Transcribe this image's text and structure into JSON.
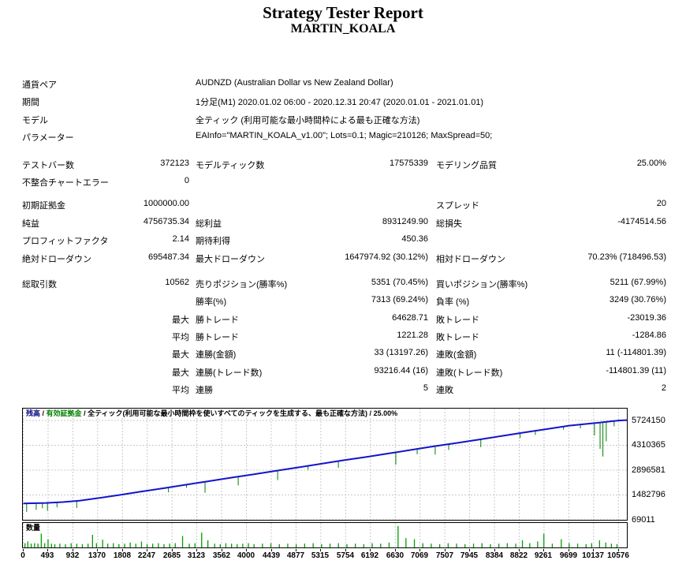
{
  "title": "Strategy Tester Report",
  "subtitle": "MARTIN_KOALA",
  "report": {
    "rows": [
      {
        "c1l": "通貨ペア",
        "wide": "AUDNZD (Australian Dollar vs New Zealand Dollar)"
      },
      {
        "c1l": "期間",
        "wide": "1分足(M1) 2020.01.02 06:00 - 2020.12.31 20:47 (2020.01.01 - 2021.01.01)"
      },
      {
        "c1l": "モデル",
        "wide": "全ティック (利用可能な最小時間枠による最も正確な方法)"
      },
      {
        "c1l": "パラメーター",
        "wide": "EAInfo=\"MARTIN_KOALA_v1.00\"; Lots=0.1; Magic=210126; MaxSpread=50;"
      },
      {
        "gap": 12
      },
      {
        "c1l": "テストバー数",
        "c1v": "372123",
        "c2l": "モデルティック数",
        "c2v": "17575339",
        "c3l": "モデリング品質",
        "c3v": "25.00%"
      },
      {
        "c1l": "不整合チャートエラー",
        "c1v": "0"
      },
      {
        "gap": 7
      },
      {
        "c1l": "初期証拠金",
        "c1v": "1000000.00",
        "c3l": "スプレッド",
        "c3v": "20"
      },
      {
        "c1l": "純益",
        "c1v": "4756735.34",
        "c2l": "総利益",
        "c2v": "8931249.90",
        "c3l": "総損失",
        "c3v": "-4174514.56"
      },
      {
        "c1l": "プロフィットファクタ",
        "c1v": "2.14",
        "c2l": "期待利得",
        "c2v": "450.36"
      },
      {
        "c1l": "絶対ドローダウン",
        "c1v": "695487.34",
        "c2l": "最大ドローダウン",
        "c2v": "1647974.92 (30.12%)",
        "c3l": "相対ドローダウン",
        "c3v": "70.23% (718496.53)"
      },
      {
        "gap": 10
      },
      {
        "c1l": "総取引数",
        "c1v": "10562",
        "c2l": "売りポジション(勝率%)",
        "c2v": "5351 (70.45%)",
        "c3l": "買いポジション(勝率%)",
        "c3v": "5211 (67.99%)"
      },
      {
        "c2l": "勝率(%)",
        "c2v": "7313 (69.24%)",
        "c3l": "負率 (%)",
        "c3v": "3249 (30.76%)"
      },
      {
        "c1v": "最大",
        "c2l": "勝トレード",
        "c2v": "64628.71",
        "c3l": "敗トレード",
        "c3v": "-23019.36"
      },
      {
        "c1v": "平均",
        "c2l": "勝トレード",
        "c2v": "1221.28",
        "c3l": "敗トレード",
        "c3v": "-1284.86"
      },
      {
        "c1v": "最大",
        "c2l": "連勝(金額)",
        "c2v": "33 (13197.26)",
        "c3l": "連敗(金額)",
        "c3v": "11 (-114801.39)"
      },
      {
        "c1v": "最大",
        "c2l": "連勝(トレード数)",
        "c2v": "93216.44 (16)",
        "c3l": "連敗(トレード数)",
        "c3v": "-114801.39 (11)"
      },
      {
        "c1v": "平均",
        "c2l": "連勝",
        "c2v": "5",
        "c3l": "連敗",
        "c3v": "2"
      }
    ]
  },
  "colors": {
    "balance_line": "#1414CC",
    "equity_line": "#008000",
    "volume_bar": "#00A000",
    "grid": "#C8C8C8",
    "balance_label": "#000080"
  },
  "chart_data": [
    {
      "type": "line",
      "legend": {
        "balance_label": "残高",
        "equity_label": "有効証拠金",
        "model_label": "全ティック(利用可能な最小時間枠を使いすべてのティックを生成する、最も正確な方法)",
        "quality": "25.00%",
        "sep": " / "
      },
      "xlim": [
        0,
        10729
      ],
      "ylim": [
        25000,
        6440000
      ],
      "grid": true,
      "y_axis_ticks": [
        5724150,
        4310365,
        2896581,
        1482796,
        69011
      ],
      "x_axis_ticks": [
        0,
        493,
        932,
        1370,
        1808,
        2247,
        2685,
        3123,
        3562,
        4000,
        4439,
        4877,
        5315,
        5754,
        6192,
        6630,
        7069,
        7507,
        7945,
        8384,
        8822,
        9261,
        9699,
        10137,
        10576
      ],
      "balance": [
        [
          0,
          1000000
        ],
        [
          150,
          1010000
        ],
        [
          400,
          1030000
        ],
        [
          700,
          1080000
        ],
        [
          1000,
          1160000
        ],
        [
          1300,
          1290000
        ],
        [
          1700,
          1480000
        ],
        [
          2100,
          1680000
        ],
        [
          2500,
          1870000
        ],
        [
          2900,
          2070000
        ],
        [
          3300,
          2270000
        ],
        [
          3700,
          2470000
        ],
        [
          4100,
          2660000
        ],
        [
          4500,
          2860000
        ],
        [
          4900,
          3060000
        ],
        [
          5300,
          3260000
        ],
        [
          5700,
          3460000
        ],
        [
          6100,
          3650000
        ],
        [
          6500,
          3850000
        ],
        [
          6900,
          4050000
        ],
        [
          7300,
          4250000
        ],
        [
          7700,
          4440000
        ],
        [
          8100,
          4640000
        ],
        [
          8500,
          4840000
        ],
        [
          8900,
          5040000
        ],
        [
          9300,
          5230000
        ],
        [
          9700,
          5430000
        ],
        [
          10100,
          5560000
        ],
        [
          10300,
          5620000
        ],
        [
          10576,
          5720000
        ],
        [
          10729,
          5740000
        ]
      ],
      "equity_drawdowns": [
        [
          60,
          480000
        ],
        [
          230,
          380000
        ],
        [
          340,
          300000
        ],
        [
          430,
          450000
        ],
        [
          600,
          280000
        ],
        [
          950,
          400000
        ],
        [
          2580,
          280000
        ],
        [
          2900,
          180000
        ],
        [
          3230,
          620000
        ],
        [
          3820,
          500000
        ],
        [
          4520,
          540000
        ],
        [
          5060,
          230000
        ],
        [
          5600,
          380000
        ],
        [
          6620,
          700000
        ],
        [
          7000,
          300000
        ],
        [
          7320,
          480000
        ],
        [
          7560,
          330000
        ],
        [
          8130,
          450000
        ],
        [
          8830,
          280000
        ],
        [
          9100,
          240000
        ],
        [
          9600,
          180000
        ],
        [
          9900,
          220000
        ],
        [
          10150,
          700000
        ],
        [
          10250,
          1500000
        ],
        [
          10300,
          1950000
        ],
        [
          10360,
          1100000
        ],
        [
          10500,
          300000
        ]
      ]
    },
    {
      "type": "bar",
      "panel_label": "数量",
      "bars": [
        [
          30,
          0.12
        ],
        [
          80,
          0.2
        ],
        [
          140,
          0.1
        ],
        [
          200,
          0.12
        ],
        [
          260,
          0.1
        ],
        [
          320,
          0.55
        ],
        [
          380,
          0.12
        ],
        [
          440,
          0.3
        ],
        [
          500,
          0.1
        ],
        [
          560,
          0.08
        ],
        [
          650,
          0.1
        ],
        [
          750,
          0.08
        ],
        [
          850,
          0.12
        ],
        [
          950,
          0.1
        ],
        [
          1050,
          0.08
        ],
        [
          1150,
          0.1
        ],
        [
          1230,
          0.5
        ],
        [
          1300,
          0.12
        ],
        [
          1410,
          0.28
        ],
        [
          1500,
          0.1
        ],
        [
          1600,
          0.12
        ],
        [
          1700,
          0.08
        ],
        [
          1800,
          0.1
        ],
        [
          1900,
          0.15
        ],
        [
          2000,
          0.1
        ],
        [
          2100,
          0.2
        ],
        [
          2200,
          0.08
        ],
        [
          2300,
          0.1
        ],
        [
          2400,
          0.12
        ],
        [
          2500,
          0.08
        ],
        [
          2600,
          0.1
        ],
        [
          2700,
          0.12
        ],
        [
          2830,
          0.45
        ],
        [
          2950,
          0.1
        ],
        [
          3050,
          0.12
        ],
        [
          3170,
          0.6
        ],
        [
          3280,
          0.25
        ],
        [
          3400,
          0.1
        ],
        [
          3500,
          0.08
        ],
        [
          3600,
          0.12
        ],
        [
          3700,
          0.1
        ],
        [
          3800,
          0.08
        ],
        [
          3900,
          0.1
        ],
        [
          4000,
          0.12
        ],
        [
          4100,
          0.08
        ],
        [
          4250,
          0.1
        ],
        [
          4400,
          0.12
        ],
        [
          4550,
          0.08
        ],
        [
          4700,
          0.1
        ],
        [
          4850,
          0.08
        ],
        [
          5000,
          0.1
        ],
        [
          5150,
          0.12
        ],
        [
          5300,
          0.08
        ],
        [
          5450,
          0.1
        ],
        [
          5600,
          0.12
        ],
        [
          5750,
          0.08
        ],
        [
          5900,
          0.1
        ],
        [
          6050,
          0.08
        ],
        [
          6200,
          0.12
        ],
        [
          6350,
          0.1
        ],
        [
          6500,
          0.15
        ],
        [
          6660,
          0.9
        ],
        [
          6800,
          0.35
        ],
        [
          6950,
          0.3
        ],
        [
          7100,
          0.12
        ],
        [
          7250,
          0.1
        ],
        [
          7400,
          0.08
        ],
        [
          7550,
          0.12
        ],
        [
          7700,
          0.1
        ],
        [
          7850,
          0.08
        ],
        [
          8000,
          0.1
        ],
        [
          8150,
          0.12
        ],
        [
          8300,
          0.08
        ],
        [
          8450,
          0.1
        ],
        [
          8600,
          0.12
        ],
        [
          8750,
          0.1
        ],
        [
          8870,
          0.25
        ],
        [
          9000,
          0.12
        ],
        [
          9140,
          0.2
        ],
        [
          9250,
          0.55
        ],
        [
          9400,
          0.1
        ],
        [
          9560,
          0.3
        ],
        [
          9700,
          0.12
        ],
        [
          9850,
          0.1
        ],
        [
          10000,
          0.08
        ],
        [
          10100,
          0.12
        ],
        [
          10240,
          0.25
        ],
        [
          10350,
          0.15
        ],
        [
          10450,
          0.1
        ],
        [
          10550,
          0.08
        ]
      ]
    }
  ]
}
